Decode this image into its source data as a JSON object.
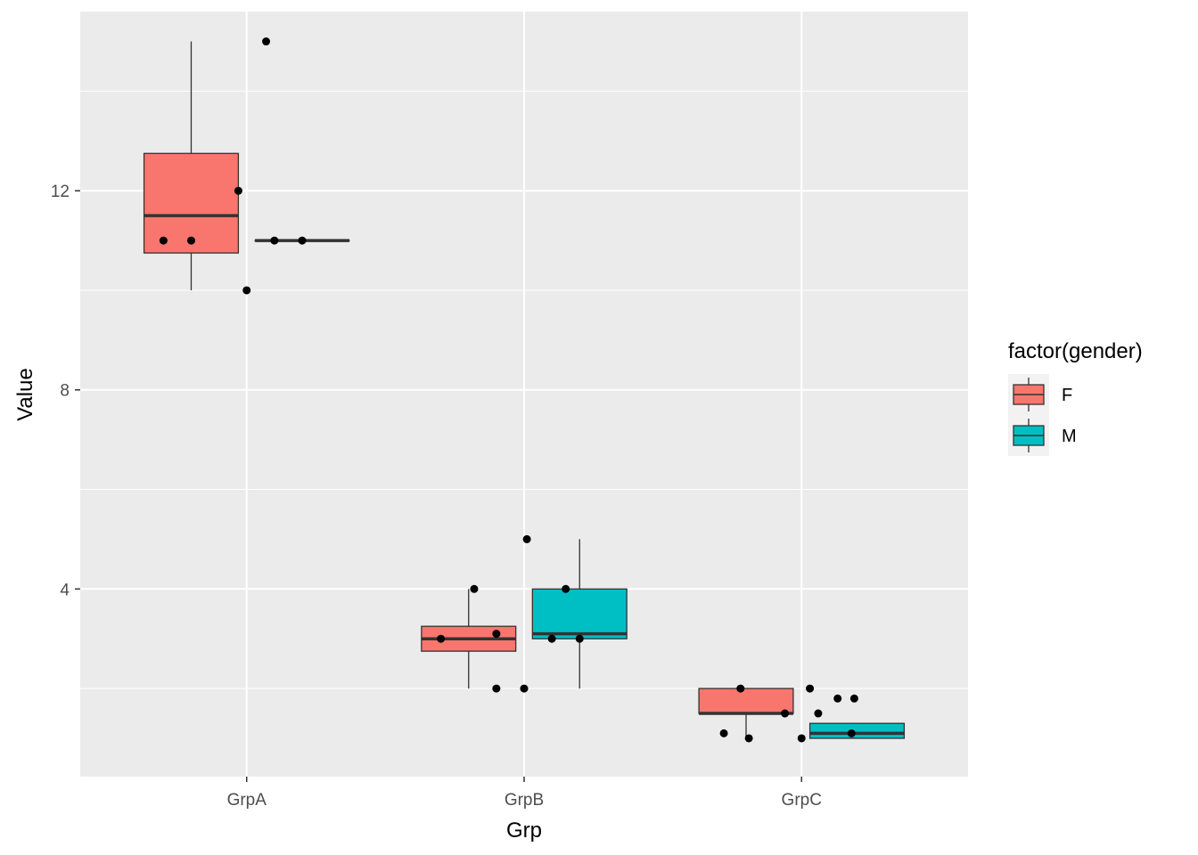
{
  "chart_data": {
    "type": "boxplot",
    "xlabel": "Grp",
    "ylabel": "Value",
    "categories": [
      "GrpA",
      "GrpB",
      "GrpC"
    ],
    "y_ticks": [
      4,
      8,
      12
    ],
    "ylim": [
      0.23,
      15.6
    ],
    "grid": true,
    "legend": {
      "title": "factor(gender)",
      "position": "right",
      "entries": [
        {
          "label": "F",
          "color": "#F8766D"
        },
        {
          "label": "M",
          "color": "#00BFC4"
        }
      ]
    },
    "series": [
      {
        "name": "F",
        "color": "#F8766D",
        "boxes": [
          {
            "category": "GrpA",
            "lower_whisker": 10,
            "q1": 10.75,
            "median": 11.5,
            "q3": 12.75,
            "upper_whisker": 15
          },
          {
            "category": "GrpB",
            "lower_whisker": 2,
            "q1": 2.75,
            "median": 3,
            "q3": 3.25,
            "upper_whisker": 4
          },
          {
            "category": "GrpC",
            "lower_whisker": 1,
            "q1": 1.5,
            "median": 1.5,
            "q3": 2,
            "upper_whisker": 2
          }
        ]
      },
      {
        "name": "M",
        "color": "#00BFC4",
        "boxes": [
          {
            "category": "GrpA",
            "lower_whisker": 11,
            "q1": 11,
            "median": 11,
            "q3": 11,
            "upper_whisker": 11
          },
          {
            "category": "GrpB",
            "lower_whisker": 2,
            "q1": 3,
            "median": 3.1,
            "q3": 4,
            "upper_whisker": 5
          },
          {
            "category": "GrpC",
            "lower_whisker": 1,
            "q1": 1,
            "median": 1.1,
            "q3": 1.3,
            "upper_whisker": 1.3
          }
        ]
      }
    ],
    "points": [
      {
        "category": "GrpA",
        "offset": -0.3,
        "y": 11
      },
      {
        "category": "GrpA",
        "offset": -0.2,
        "y": 11
      },
      {
        "category": "GrpA",
        "offset": -0.03,
        "y": 12
      },
      {
        "category": "GrpA",
        "offset": 0,
        "y": 10
      },
      {
        "category": "GrpA",
        "offset": 0.07,
        "y": 15
      },
      {
        "category": "GrpA",
        "offset": 0.1,
        "y": 11
      },
      {
        "category": "GrpA",
        "offset": 0.2,
        "y": 11
      },
      {
        "category": "GrpB",
        "offset": -0.3,
        "y": 3
      },
      {
        "category": "GrpB",
        "offset": -0.18,
        "y": 4
      },
      {
        "category": "GrpB",
        "offset": -0.1,
        "y": 3.1
      },
      {
        "category": "GrpB",
        "offset": -0.1,
        "y": 2
      },
      {
        "category": "GrpB",
        "offset": 0,
        "y": 2
      },
      {
        "category": "GrpB",
        "offset": 0.01,
        "y": 5
      },
      {
        "category": "GrpB",
        "offset": 0.1,
        "y": 3
      },
      {
        "category": "GrpB",
        "offset": 0.15,
        "y": 4
      },
      {
        "category": "GrpB",
        "offset": 0.2,
        "y": 3
      },
      {
        "category": "GrpC",
        "offset": -0.28,
        "y": 1.1
      },
      {
        "category": "GrpC",
        "offset": -0.22,
        "y": 2
      },
      {
        "category": "GrpC",
        "offset": -0.19,
        "y": 1
      },
      {
        "category": "GrpC",
        "offset": -0.06,
        "y": 1.5
      },
      {
        "category": "GrpC",
        "offset": 0,
        "y": 1
      },
      {
        "category": "GrpC",
        "offset": 0.03,
        "y": 2
      },
      {
        "category": "GrpC",
        "offset": 0.06,
        "y": 1.5
      },
      {
        "category": "GrpC",
        "offset": 0.13,
        "y": 1.8
      },
      {
        "category": "GrpC",
        "offset": 0.18,
        "y": 1.1
      },
      {
        "category": "GrpC",
        "offset": 0.19,
        "y": 1.8
      }
    ]
  }
}
